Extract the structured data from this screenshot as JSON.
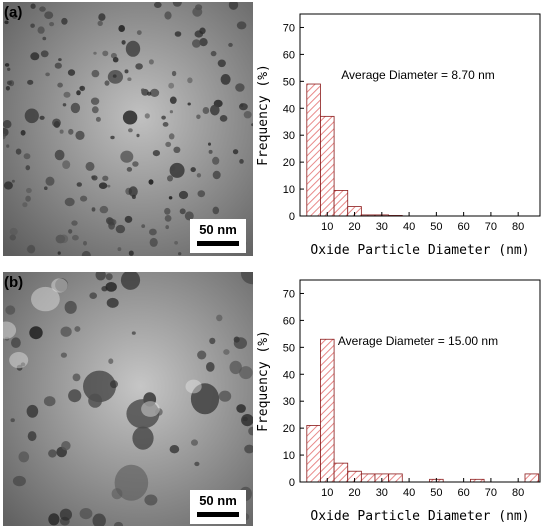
{
  "panels": [
    {
      "label": "a",
      "scale_bar": "50 nm",
      "micrograph": {
        "brightness": 0.6,
        "particle_density": "high",
        "particle_size": "small"
      }
    },
    {
      "label": "b",
      "scale_bar": "50 nm",
      "micrograph": {
        "brightness": 0.62,
        "particle_density": "low",
        "particle_size": "large"
      }
    }
  ],
  "chart_data": [
    {
      "type": "bar",
      "xlabel": "Oxide Particle Diameter  (nm)",
      "ylabel": "Frequency  (%)",
      "annotation": "Average Diameter = 8.70 nm",
      "xlim": [
        0,
        88
      ],
      "ylim": [
        0,
        75
      ],
      "xticks": [
        10,
        20,
        30,
        40,
        50,
        60,
        70,
        80
      ],
      "yticks": [
        0,
        10,
        20,
        30,
        40,
        50,
        60,
        70
      ],
      "bin_width": 5,
      "bins": [
        {
          "start": 2.5,
          "value": 49
        },
        {
          "start": 7.5,
          "value": 37
        },
        {
          "start": 12.5,
          "value": 9.5
        },
        {
          "start": 17.5,
          "value": 3.5
        },
        {
          "start": 22.5,
          "value": 0.4
        },
        {
          "start": 27.5,
          "value": 0.4
        },
        {
          "start": 32.5,
          "value": 0.2
        }
      ],
      "bar_fill": "#e88a8a",
      "grid": false,
      "legend": "none"
    },
    {
      "type": "bar",
      "xlabel": "Oxide Particle Diameter  (nm)",
      "ylabel": "Frequency  (%)",
      "annotation": "Average Diameter = 15.00 nm",
      "xlim": [
        0,
        88
      ],
      "ylim": [
        0,
        75
      ],
      "xticks": [
        10,
        20,
        30,
        40,
        50,
        60,
        70,
        80
      ],
      "yticks": [
        0,
        10,
        20,
        30,
        40,
        50,
        60,
        70
      ],
      "bin_width": 5,
      "bins": [
        {
          "start": 2.5,
          "value": 21
        },
        {
          "start": 7.5,
          "value": 53
        },
        {
          "start": 12.5,
          "value": 7
        },
        {
          "start": 17.5,
          "value": 4
        },
        {
          "start": 22.5,
          "value": 3
        },
        {
          "start": 27.5,
          "value": 3
        },
        {
          "start": 32.5,
          "value": 3
        },
        {
          "start": 47.5,
          "value": 1
        },
        {
          "start": 62.5,
          "value": 1
        },
        {
          "start": 82.5,
          "value": 3
        }
      ],
      "bar_fill": "#e88a8a",
      "grid": false,
      "legend": "none"
    }
  ]
}
